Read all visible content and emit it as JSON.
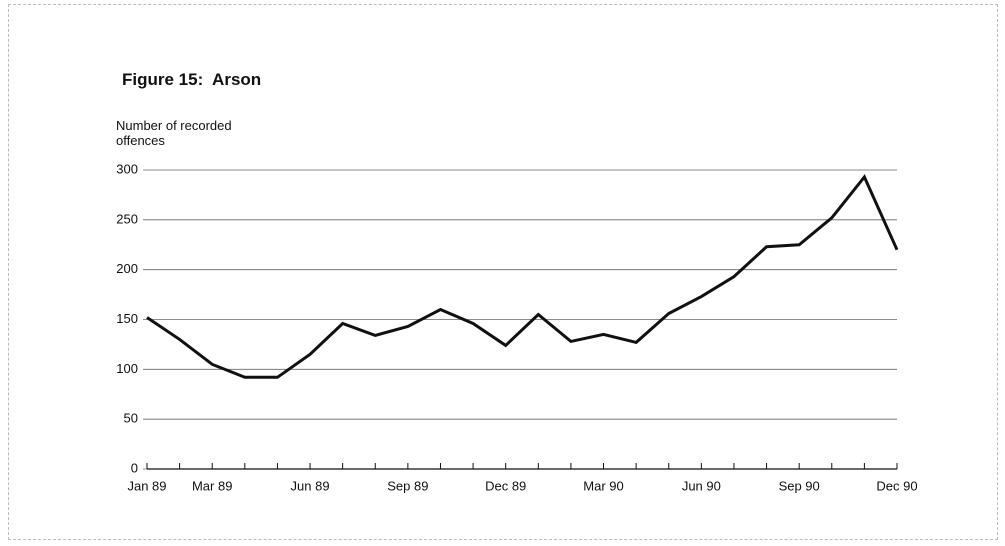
{
  "chart_data": {
    "type": "line",
    "title": "Figure 15:  Arson",
    "y_label": "Number of recorded offences",
    "categories": [
      "Jan 89",
      null,
      "Mar 89",
      null,
      null,
      "Jun 89",
      null,
      null,
      "Sep 89",
      null,
      null,
      "Dec 89",
      null,
      null,
      "Mar 90",
      null,
      null,
      "Jun 90",
      null,
      null,
      "Sep 90",
      null,
      null,
      "Dec 90"
    ],
    "series": [
      {
        "name": "Arson",
        "color": "#111111",
        "values": [
          152,
          130,
          105,
          92,
          92,
          115,
          146,
          134,
          143,
          160,
          146,
          124,
          155,
          128,
          135,
          127,
          156,
          173,
          193,
          223,
          225,
          252,
          293,
          220
        ]
      }
    ],
    "ylim": [
      0,
      300
    ],
    "yticks": [
      0,
      50,
      100,
      150,
      200,
      250,
      300
    ],
    "grid": true
  }
}
